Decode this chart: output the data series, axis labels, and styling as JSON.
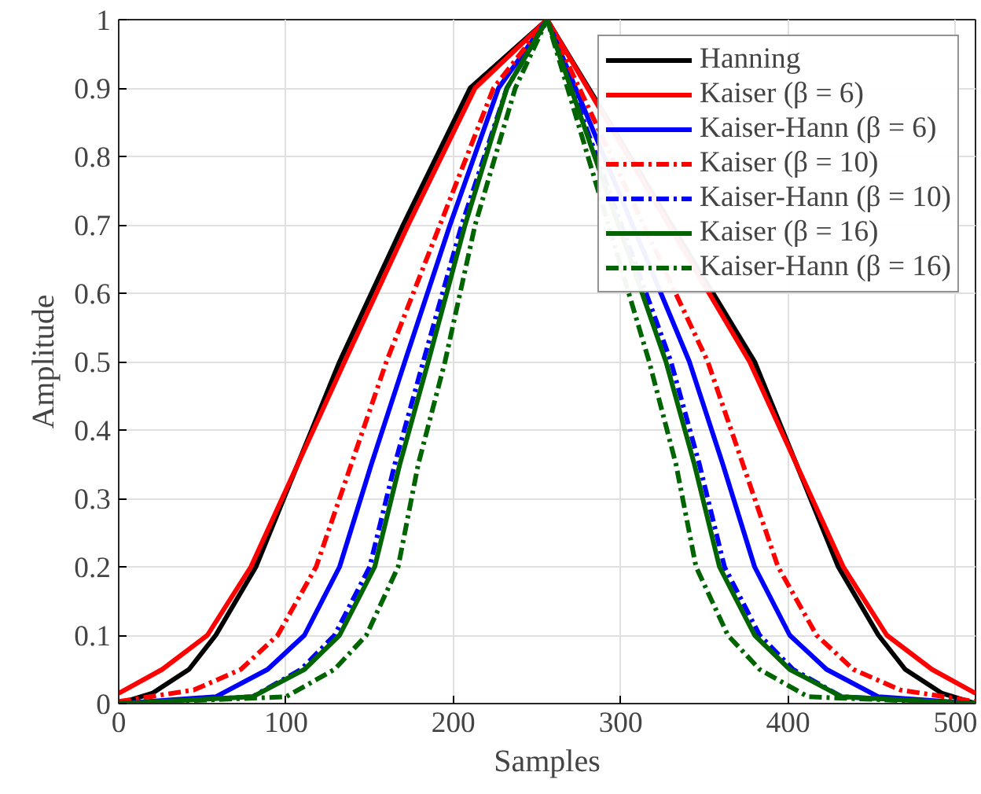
{
  "chart_data": {
    "type": "line",
    "xlabel": "Samples",
    "ylabel": "Amplitude",
    "xlim": [
      0,
      512
    ],
    "ylim": [
      0,
      1
    ],
    "xticks": [
      0,
      100,
      200,
      300,
      400,
      500
    ],
    "yticks": [
      0,
      0.1,
      0.2,
      0.3,
      0.4,
      0.5,
      0.6,
      0.7,
      0.8,
      0.9,
      1
    ],
    "grid": true,
    "legend": "top right",
    "marker": "none",
    "series": [
      {
        "name": "Hanning",
        "color": "#000000",
        "line_style": "solid",
        "x": [
          0,
          20,
          42,
          58,
          82,
          107,
          132,
          170,
          210,
          256,
          380,
          405,
          430,
          454,
          470,
          492,
          512
        ],
        "values": [
          0,
          0.015,
          0.05,
          0.1,
          0.2,
          0.35,
          0.5,
          0.7,
          0.9,
          1,
          0.5,
          0.35,
          0.2,
          0.1,
          0.05,
          0.015,
          0
        ]
      },
      {
        "name": "Kaiser (β = 6)",
        "color": "#ff0000",
        "line_style": "solid",
        "x": [
          0,
          26,
          53,
          79,
          107,
          135,
          173,
          213,
          256,
          377,
          405,
          433,
          459,
          486,
          512
        ],
        "values": [
          0.015,
          0.05,
          0.1,
          0.2,
          0.35,
          0.5,
          0.7,
          0.9,
          1,
          0.5,
          0.35,
          0.2,
          0.1,
          0.05,
          0.015
        ]
      },
      {
        "name": "Kaiser-Hann (β = 6)",
        "color": "#0000ff",
        "line_style": "solid",
        "x": [
          0,
          58,
          89,
          111,
          132,
          151,
          171,
          198,
          227,
          256,
          341,
          361,
          380,
          401,
          423,
          454,
          512
        ],
        "values": [
          0,
          0.01,
          0.05,
          0.1,
          0.2,
          0.35,
          0.5,
          0.7,
          0.9,
          1,
          0.5,
          0.35,
          0.2,
          0.1,
          0.05,
          0.01,
          0
        ]
      },
      {
        "name": "Kaiser (β = 10)",
        "color": "#ff0000",
        "line_style": "dashed",
        "x": [
          0,
          45,
          73,
          95,
          118,
          139,
          160,
          192,
          224,
          256,
          352,
          373,
          394,
          417,
          439,
          467,
          512
        ],
        "values": [
          0.003,
          0.02,
          0.05,
          0.1,
          0.2,
          0.35,
          0.5,
          0.7,
          0.9,
          1,
          0.5,
          0.35,
          0.2,
          0.1,
          0.05,
          0.02,
          0.003
        ]
      },
      {
        "name": "Kaiser-Hann (β = 10)",
        "color": "#0000ff",
        "line_style": "dashed",
        "x": [
          0,
          80,
          109,
          129,
          150,
          165,
          182,
          205,
          232,
          256,
          330,
          347,
          362,
          383,
          403,
          432,
          512
        ],
        "values": [
          0,
          0.01,
          0.05,
          0.1,
          0.2,
          0.35,
          0.5,
          0.7,
          0.9,
          1,
          0.5,
          0.35,
          0.2,
          0.1,
          0.05,
          0.01,
          0
        ]
      },
      {
        "name": "Kaiser (β = 16)",
        "color": "#006400",
        "line_style": "solid",
        "x": [
          0,
          80,
          111,
          132,
          153,
          168,
          185,
          207,
          232,
          256,
          327,
          344,
          359,
          380,
          401,
          432,
          512
        ],
        "values": [
          0,
          0.01,
          0.05,
          0.1,
          0.2,
          0.35,
          0.5,
          0.7,
          0.9,
          1,
          0.5,
          0.35,
          0.2,
          0.1,
          0.05,
          0.01,
          0
        ]
      },
      {
        "name": "Kaiser-Hann (β = 16)",
        "color": "#006400",
        "line_style": "dashed",
        "x": [
          0,
          100,
          129,
          148,
          167,
          179,
          195,
          213,
          237,
          256,
          317,
          333,
          345,
          364,
          383,
          412,
          512
        ],
        "values": [
          0,
          0.01,
          0.05,
          0.1,
          0.2,
          0.35,
          0.5,
          0.7,
          0.9,
          1,
          0.5,
          0.35,
          0.2,
          0.1,
          0.05,
          0.01,
          0
        ]
      }
    ]
  }
}
